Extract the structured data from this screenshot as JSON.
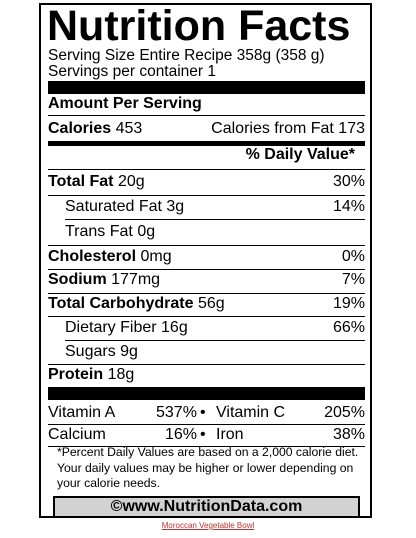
{
  "label": {
    "title": "Nutrition Facts",
    "serving_size": "Serving Size Entire Recipe 358g (358 g)",
    "servings_per_container": "Servings per container 1",
    "amount_per_serving": "Amount Per Serving",
    "calories_label": "Calories",
    "calories_value": "453",
    "calories_from_fat": "Calories from Fat 173",
    "daily_value_header": "% Daily Value*",
    "nutrients": [
      {
        "name": "Total Fat",
        "amount": "20g",
        "dv": "30%"
      },
      {
        "name": "Saturated Fat",
        "amount": "3g",
        "dv": "14%"
      },
      {
        "name": "Trans Fat",
        "amount": "0g",
        "dv": ""
      },
      {
        "name": "Cholesterol",
        "amount": "0mg",
        "dv": "0%"
      },
      {
        "name": "Sodium",
        "amount": "177mg",
        "dv": "7%"
      },
      {
        "name": "Total Carbohydrate",
        "amount": "56g",
        "dv": "19%"
      },
      {
        "name": "Dietary Fiber",
        "amount": "16g",
        "dv": "66%"
      },
      {
        "name": "Sugars",
        "amount": "9g",
        "dv": ""
      },
      {
        "name": "Protein",
        "amount": "18g",
        "dv": ""
      }
    ],
    "vitamins": [
      {
        "left_name": "Vitamin A",
        "left_value": "537%",
        "right_name": "Vitamin C",
        "right_value": "205%"
      },
      {
        "left_name": "Calcium",
        "left_value": "16%",
        "right_name": "Iron",
        "right_value": "38%"
      }
    ],
    "bullet": "•",
    "footnote": "*Percent Daily Values are based on a 2,000 calorie diet. Your daily values may be higher or lower depending on your calorie needs.",
    "website": "©www.NutritionData.com"
  },
  "recipe_link": "Moroccan Vegetable Bowl"
}
